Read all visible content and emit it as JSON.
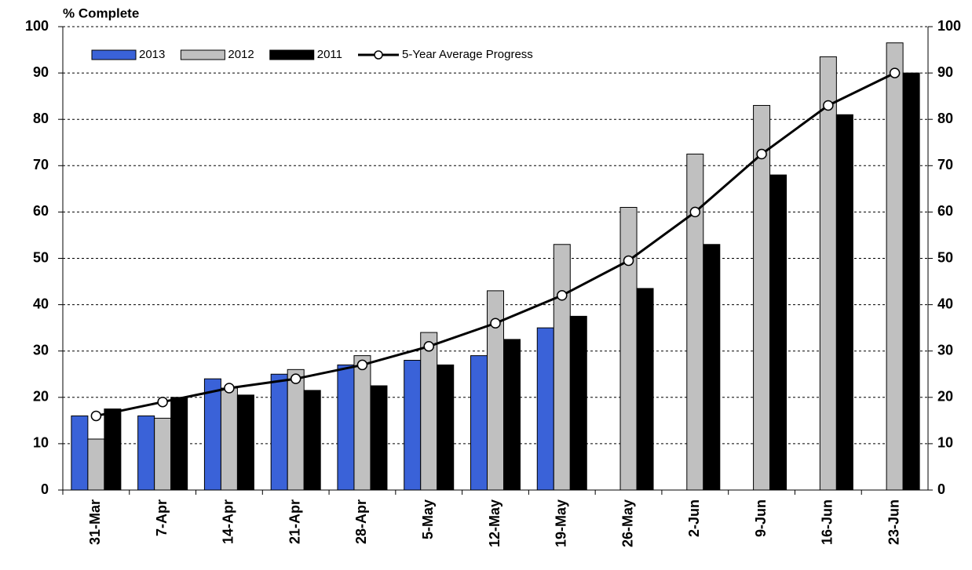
{
  "chart_data": {
    "type": "bar",
    "title": "% Complete",
    "categories": [
      "31-Mar",
      "7-Apr",
      "14-Apr",
      "21-Apr",
      "28-Apr",
      "5-May",
      "12-May",
      "19-May",
      "26-May",
      "2-Jun",
      "9-Jun",
      "16-Jun",
      "23-Jun"
    ],
    "series": [
      {
        "name": "2013",
        "type": "bar",
        "color": "#3a62d8",
        "values": [
          16,
          16,
          24,
          25,
          27,
          28,
          29,
          35,
          null,
          null,
          null,
          null,
          null
        ]
      },
      {
        "name": "2012",
        "type": "bar",
        "color": "#c0c0c0",
        "values": [
          11,
          15.5,
          22,
          26,
          29,
          34,
          43,
          53,
          61,
          72.5,
          83,
          93.5,
          96.5
        ]
      },
      {
        "name": "2011",
        "type": "bar",
        "color": "#000000",
        "values": [
          17.5,
          20,
          20.5,
          21.5,
          22.5,
          27,
          32.5,
          37.5,
          43.5,
          53,
          68,
          81,
          90
        ]
      },
      {
        "name": "5-Year Average Progress",
        "type": "line",
        "color": "#000000",
        "values": [
          16,
          19,
          22,
          24,
          27,
          31,
          36,
          42,
          49.5,
          60,
          72.5,
          83,
          90
        ]
      }
    ],
    "ylim": [
      0,
      100
    ],
    "yticks": [
      0,
      10,
      20,
      30,
      40,
      50,
      60,
      70,
      80,
      90,
      100
    ],
    "y2lim": [
      0,
      100
    ],
    "y2ticks": [
      0,
      10,
      20,
      30,
      40,
      50,
      60,
      70,
      80,
      90,
      100
    ],
    "grid": true,
    "legend": "top"
  }
}
